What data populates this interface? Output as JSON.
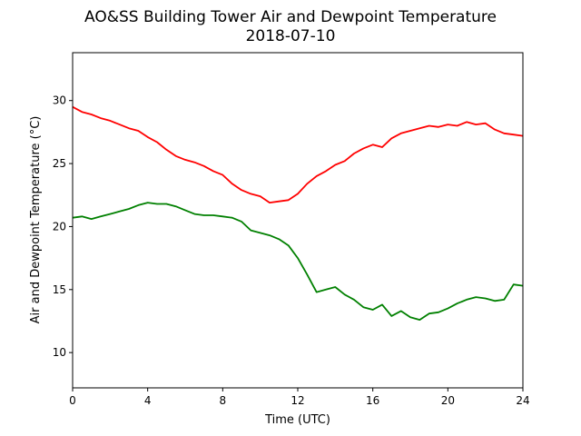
{
  "chart_data": {
    "type": "line",
    "title": "AO&SS Building Tower Air and Dewpoint Temperature",
    "subtitle": "2018-07-10",
    "xlabel": "Time (UTC)",
    "ylabel": "Air and Dewpoint Temperature (°C)",
    "xlim": [
      0,
      24
    ],
    "ylim": [
      7.2,
      33.8
    ],
    "xticks": [
      0,
      4,
      8,
      12,
      16,
      20,
      24
    ],
    "yticks": [
      10,
      15,
      20,
      25,
      30
    ],
    "xtick_labels": [
      "0",
      "4",
      "8",
      "12",
      "16",
      "20",
      "24"
    ],
    "ytick_labels": [
      "10",
      "15",
      "20",
      "25",
      "30"
    ],
    "grid": false,
    "series": [
      {
        "color": "#ff0000",
        "x": [
          0,
          0.5,
          1,
          1.5,
          2,
          2.5,
          3,
          3.5,
          4,
          4.5,
          5,
          5.5,
          6,
          6.5,
          7,
          7.5,
          8,
          8.5,
          9,
          9.5,
          10,
          10.5,
          11,
          11.5,
          12,
          12.5,
          13,
          13.5,
          14,
          14.5,
          15,
          15.5,
          16,
          16.5,
          17,
          17.5,
          18,
          18.5,
          19,
          19.5,
          20,
          20.5,
          21,
          21.5,
          22,
          22.5,
          23,
          23.5,
          24
        ],
        "y": [
          29.5,
          29.1,
          28.9,
          28.6,
          28.4,
          28.1,
          27.8,
          27.6,
          27.1,
          26.7,
          26.1,
          25.6,
          25.3,
          25.1,
          24.8,
          24.4,
          24.1,
          23.4,
          22.9,
          22.6,
          22.4,
          21.9,
          22.0,
          22.1,
          22.6,
          23.4,
          24.0,
          24.4,
          24.9,
          25.2,
          25.8,
          26.2,
          26.5,
          26.3,
          27.0,
          27.4,
          27.6,
          27.8,
          28.0,
          27.9,
          28.1,
          28.0,
          28.3,
          28.1,
          28.2,
          27.7,
          27.4,
          27.3,
          27.2
        ]
      },
      {
        "color": "#008000",
        "x": [
          0,
          0.5,
          1,
          1.5,
          2,
          2.5,
          3,
          3.5,
          4,
          4.5,
          5,
          5.5,
          6,
          6.5,
          7,
          7.5,
          8,
          8.5,
          9,
          9.5,
          10,
          10.5,
          11,
          11.5,
          12,
          12.5,
          13,
          13.5,
          14,
          14.5,
          15,
          15.5,
          16,
          16.5,
          17,
          17.5,
          18,
          18.5,
          19,
          19.5,
          20,
          20.5,
          21,
          21.5,
          22,
          22.5,
          23,
          23.5,
          24
        ],
        "y": [
          20.7,
          20.8,
          20.6,
          20.8,
          21.0,
          21.2,
          21.4,
          21.7,
          21.9,
          21.8,
          21.8,
          21.6,
          21.3,
          21.0,
          20.9,
          20.9,
          20.8,
          20.7,
          20.4,
          19.7,
          19.5,
          19.3,
          19.0,
          18.5,
          17.5,
          16.2,
          14.8,
          15.0,
          15.2,
          14.6,
          14.2,
          13.6,
          13.4,
          13.8,
          12.9,
          13.3,
          12.8,
          12.6,
          13.1,
          13.2,
          13.5,
          13.9,
          14.2,
          14.4,
          14.3,
          14.1,
          14.2,
          15.4,
          15.3
        ]
      }
    ]
  }
}
